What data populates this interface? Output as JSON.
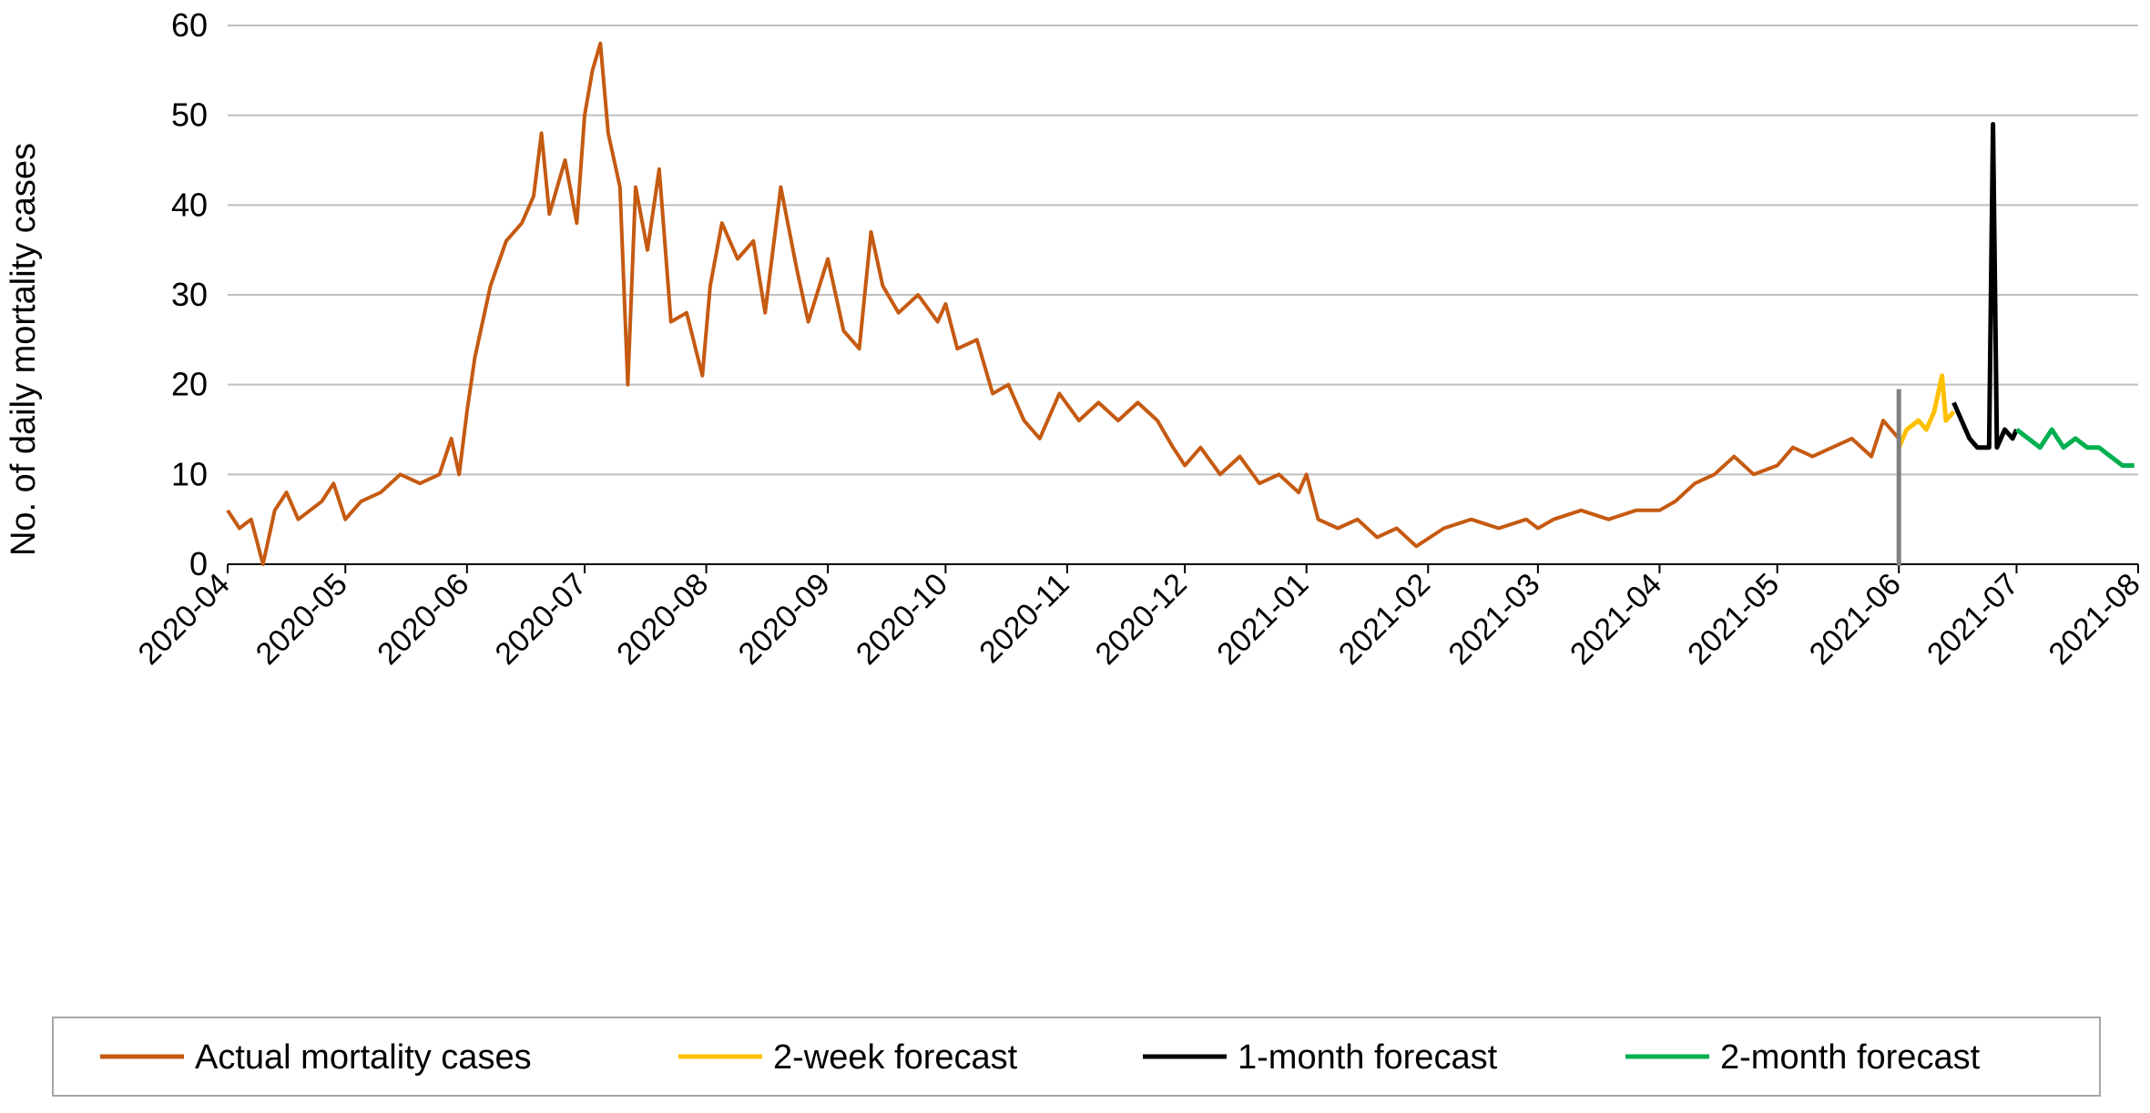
{
  "chart_data": {
    "type": "line",
    "title": "",
    "xlabel": "",
    "ylabel": "No. of daily mortality cases",
    "ylim": [
      0,
      60
    ],
    "yticks": [
      "0",
      "10",
      "20",
      "30",
      "40",
      "50",
      "60"
    ],
    "grid": true,
    "xticks": [
      "2020-04",
      "2020-05",
      "2020-06",
      "2020-07",
      "2020-08",
      "2020-09",
      "2020-10",
      "2020-11",
      "2020-12",
      "2021-01",
      "2021-02",
      "2021-03",
      "2021-04",
      "2021-05",
      "2021-06",
      "2021-07",
      "2021-08"
    ],
    "legend_position": "bottom",
    "forecast_start_marker": "2021-06",
    "series": [
      {
        "name": "Actual mortality cases",
        "color": "#c55a11",
        "points": [
          [
            "2020-04",
            6
          ],
          [
            "2020-04-04",
            4
          ],
          [
            "2020-04-07",
            5
          ],
          [
            "2020-04-10",
            0
          ],
          [
            "2020-04-13",
            6
          ],
          [
            "2020-04-16",
            8
          ],
          [
            "2020-04-19",
            5
          ],
          [
            "2020-04-22",
            6
          ],
          [
            "2020-04-25",
            7
          ],
          [
            "2020-04-28",
            9
          ],
          [
            "2020-05",
            5
          ],
          [
            "2020-05-05",
            7
          ],
          [
            "2020-05-10",
            8
          ],
          [
            "2020-05-15",
            10
          ],
          [
            "2020-05-20",
            9
          ],
          [
            "2020-05-25",
            10
          ],
          [
            "2020-05-28",
            14
          ],
          [
            "2020-05-30",
            10
          ],
          [
            "2020-06",
            17
          ],
          [
            "2020-06-03",
            23
          ],
          [
            "2020-06-07",
            31
          ],
          [
            "2020-06-11",
            36
          ],
          [
            "2020-06-15",
            38
          ],
          [
            "2020-06-18",
            41
          ],
          [
            "2020-06-20",
            48
          ],
          [
            "2020-06-22",
            39
          ],
          [
            "2020-06-26",
            45
          ],
          [
            "2020-06-29",
            38
          ],
          [
            "2020-07",
            50
          ],
          [
            "2020-07-03",
            55
          ],
          [
            "2020-07-05",
            58
          ],
          [
            "2020-07-07",
            48
          ],
          [
            "2020-07-10",
            42
          ],
          [
            "2020-07-12",
            20
          ],
          [
            "2020-07-14",
            42
          ],
          [
            "2020-07-17",
            35
          ],
          [
            "2020-07-20",
            44
          ],
          [
            "2020-07-23",
            27
          ],
          [
            "2020-07-27",
            28
          ],
          [
            "2020-07-31",
            21
          ],
          [
            "2020-08-02",
            31
          ],
          [
            "2020-08-05",
            38
          ],
          [
            "2020-08-09",
            34
          ],
          [
            "2020-08-13",
            36
          ],
          [
            "2020-08-16",
            28
          ],
          [
            "2020-08-20",
            42
          ],
          [
            "2020-08-24",
            33
          ],
          [
            "2020-08-27",
            27
          ],
          [
            "2020-09",
            34
          ],
          [
            "2020-09-05",
            26
          ],
          [
            "2020-09-09",
            24
          ],
          [
            "2020-09-12",
            37
          ],
          [
            "2020-09-15",
            31
          ],
          [
            "2020-09-19",
            28
          ],
          [
            "2020-09-24",
            30
          ],
          [
            "2020-09-29",
            27
          ],
          [
            "2020-10",
            29
          ],
          [
            "2020-10-04",
            24
          ],
          [
            "2020-10-09",
            25
          ],
          [
            "2020-10-13",
            19
          ],
          [
            "2020-10-17",
            20
          ],
          [
            "2020-10-21",
            16
          ],
          [
            "2020-10-25",
            14
          ],
          [
            "2020-10-30",
            19
          ],
          [
            "2020-11-04",
            16
          ],
          [
            "2020-11-09",
            18
          ],
          [
            "2020-11-14",
            16
          ],
          [
            "2020-11-19",
            18
          ],
          [
            "2020-11-24",
            16
          ],
          [
            "2020-11-28",
            13
          ],
          [
            "2020-12",
            11
          ],
          [
            "2020-12-05",
            13
          ],
          [
            "2020-12-10",
            10
          ],
          [
            "2020-12-15",
            12
          ],
          [
            "2020-12-20",
            9
          ],
          [
            "2020-12-25",
            10
          ],
          [
            "2020-12-30",
            8
          ],
          [
            "2021-01",
            10
          ],
          [
            "2021-01-04",
            5
          ],
          [
            "2021-01-09",
            4
          ],
          [
            "2021-01-14",
            5
          ],
          [
            "2021-01-19",
            3
          ],
          [
            "2021-01-24",
            4
          ],
          [
            "2021-01-29",
            2
          ],
          [
            "2021-02-05",
            4
          ],
          [
            "2021-02-12",
            5
          ],
          [
            "2021-02-19",
            4
          ],
          [
            "2021-02-26",
            5
          ],
          [
            "2021-03",
            4
          ],
          [
            "2021-03-05",
            5
          ],
          [
            "2021-03-12",
            6
          ],
          [
            "2021-03-19",
            5
          ],
          [
            "2021-03-26",
            6
          ],
          [
            "2021-04",
            6
          ],
          [
            "2021-04-05",
            7
          ],
          [
            "2021-04-10",
            9
          ],
          [
            "2021-04-15",
            10
          ],
          [
            "2021-04-20",
            12
          ],
          [
            "2021-04-25",
            10
          ],
          [
            "2021-05",
            11
          ],
          [
            "2021-05-05",
            13
          ],
          [
            "2021-05-10",
            12
          ],
          [
            "2021-05-15",
            13
          ],
          [
            "2021-05-20",
            14
          ],
          [
            "2021-05-25",
            12
          ],
          [
            "2021-05-28",
            16
          ],
          [
            "2021-06",
            14
          ]
        ]
      },
      {
        "name": "2-week forecast",
        "color": "#ffc000",
        "points": [
          [
            "2021-06",
            13
          ],
          [
            "2021-06-03",
            15
          ],
          [
            "2021-06-06",
            16
          ],
          [
            "2021-06-08",
            15
          ],
          [
            "2021-06-10",
            17
          ],
          [
            "2021-06-12",
            21
          ],
          [
            "2021-06-13",
            16
          ],
          [
            "2021-06-15",
            17
          ]
        ]
      },
      {
        "name": "1-month forecast",
        "color": "#000000",
        "points": [
          [
            "2021-06-15",
            18
          ],
          [
            "2021-06-17",
            16
          ],
          [
            "2021-06-19",
            14
          ],
          [
            "2021-06-21",
            13
          ],
          [
            "2021-06-24",
            13
          ],
          [
            "2021-06-25",
            49
          ],
          [
            "2021-06-26",
            13
          ],
          [
            "2021-06-28",
            15
          ],
          [
            "2021-06-30",
            14
          ],
          [
            "2021-07-01",
            15
          ]
        ]
      },
      {
        "name": "2-month forecast",
        "color": "#00b050",
        "points": [
          [
            "2021-07-01",
            15
          ],
          [
            "2021-07-04",
            14
          ],
          [
            "2021-07-07",
            13
          ],
          [
            "2021-07-10",
            15
          ],
          [
            "2021-07-13",
            13
          ],
          [
            "2021-07-16",
            14
          ],
          [
            "2021-07-19",
            13
          ],
          [
            "2021-07-22",
            13
          ],
          [
            "2021-07-25",
            12
          ],
          [
            "2021-07-28",
            11
          ],
          [
            "2021-07-31",
            11
          ]
        ]
      }
    ]
  }
}
